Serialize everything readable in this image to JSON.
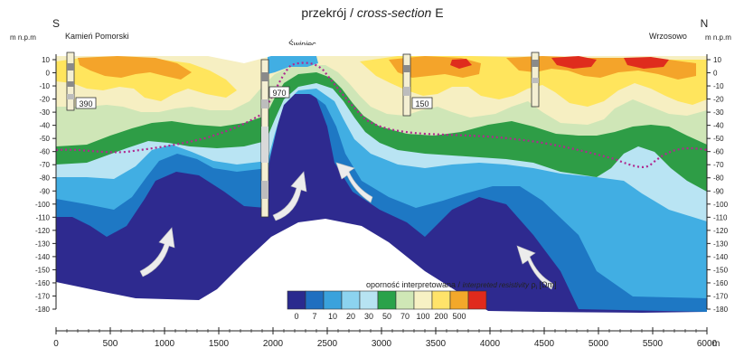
{
  "title": {
    "main": "przekrój / ",
    "italic": "cross-section",
    "letter": " E"
  },
  "orientation": {
    "left": "S",
    "right": "N"
  },
  "axis": {
    "left_unit": "m n.p.m",
    "right_unit": "m n.p.m",
    "x_unit": "m",
    "y_ticks": [
      10,
      0,
      -10,
      -20,
      -30,
      -40,
      -50,
      -60,
      -70,
      -80,
      -90,
      -100,
      -110,
      -120,
      -130,
      -140,
      -150,
      -160,
      -170,
      -180
    ],
    "x_ticks": [
      0,
      500,
      1000,
      1500,
      2000,
      2500,
      3000,
      3500,
      4000,
      4500,
      5000,
      5500,
      6000
    ]
  },
  "places": {
    "left": "Kamień Pomorski",
    "center": "Świniec",
    "right": "Wrzosowo"
  },
  "boreholes": [
    {
      "label": "390"
    },
    {
      "label": "970"
    },
    {
      "label": "150"
    }
  ],
  "legend": {
    "title_main": "oporność interpretowana / ",
    "title_italic": "interpreted resistivity",
    "title_sym": " ρ",
    "title_sub": "i",
    "title_unit": " [Ωm]",
    "values": [
      "0",
      "7",
      "10",
      "20",
      "30",
      "50",
      "70",
      "100",
      "200",
      "500"
    ],
    "colors": [
      "#2a2a8e",
      "#1f6fc0",
      "#3aa2dc",
      "#8cd3ef",
      "#b7e3f2",
      "#2aa24a",
      "#cfe7b6",
      "#f7f1c4",
      "#ffe36a",
      "#f3a82a",
      "#e02a1c"
    ]
  },
  "layer_colors": {
    "deep_blue": "#2e2a8f",
    "mid_blue": "#1e78c4",
    "light_blue": "#41aee3",
    "pale_blue": "#b9e4f3",
    "green": "#2e9d46",
    "pale_green": "#cfe6b7",
    "cream": "#f6efc2",
    "yellow": "#ffe55d",
    "orange": "#f4a42a",
    "red": "#df2c1d",
    "dotted_line": "#b0298e",
    "place_center": "#2a6fc0"
  }
}
